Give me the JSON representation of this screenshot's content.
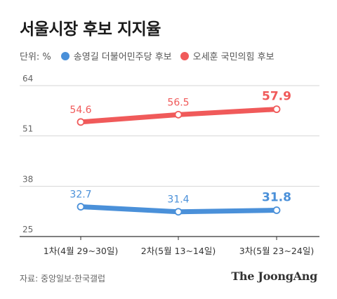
{
  "header": {
    "title": "서울시장 후보 지지율"
  },
  "legend": {
    "unit_label": "단위: %",
    "items": [
      {
        "label": "송영길 더불어민주당 후보",
        "color": "#4a90d9"
      },
      {
        "label": "오세훈 국민의힘 후보",
        "color": "#f05a5a"
      }
    ]
  },
  "chart_data": {
    "type": "line",
    "categories": [
      "1차(4월 29~30일)",
      "2차(5월 13~14일)",
      "3차(5월 23~24일)"
    ],
    "y_ticks": [
      25,
      38,
      51,
      64
    ],
    "ylim": [
      25,
      64
    ],
    "grid": true,
    "series": [
      {
        "name": "송영길 더불어민주당 후보",
        "values": [
          32.7,
          31.4,
          31.8
        ],
        "labels": [
          "32.7",
          "31.4",
          "31.8"
        ],
        "color": "#4a90d9"
      },
      {
        "name": "오세훈 국민의힘 후보",
        "values": [
          54.6,
          56.5,
          57.9
        ],
        "labels": [
          "54.6",
          "56.5",
          "57.9"
        ],
        "color": "#f05a5a"
      }
    ]
  },
  "footer": {
    "source": "자료: 중앙일보·한국갤럽",
    "brand": "The JoongAng"
  }
}
